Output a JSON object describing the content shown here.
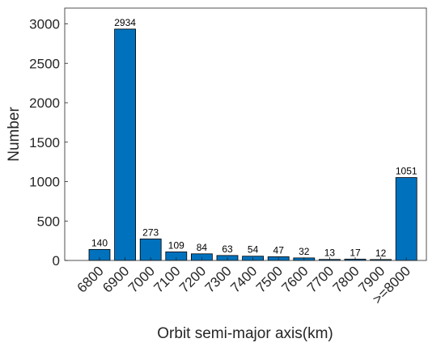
{
  "chart_data": {
    "type": "bar",
    "xlabel": "Orbit semi-major axis(km)",
    "ylabel": "Number",
    "categories": [
      "6800",
      "6900",
      "7000",
      "7100",
      "7200",
      "7300",
      "7400",
      "7500",
      "7600",
      "7700",
      "7800",
      "7900",
      ">=8000"
    ],
    "values": [
      140,
      2934,
      273,
      109,
      84,
      63,
      54,
      47,
      32,
      13,
      17,
      12,
      1051
    ],
    "color": "#0072bd",
    "ylim": [
      0,
      3200
    ],
    "yticks": [
      0,
      500,
      1000,
      1500,
      2000,
      2500,
      3000
    ],
    "grid": false
  }
}
